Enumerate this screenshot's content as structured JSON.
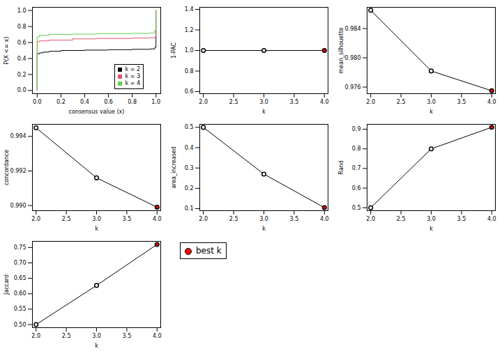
{
  "chart_data": [
    {
      "type": "step",
      "x_label": "consensus value (x)",
      "y_label": "P(X <= x)",
      "xlim": [
        -0.04,
        1.04
      ],
      "xticks": [
        {
          "value": 0,
          "label": "0.0"
        },
        0.2,
        0.4,
        0.6,
        0.8,
        {
          "value": 1,
          "label": "1.0"
        }
      ],
      "ylim": [
        -0.04,
        1.04
      ],
      "yticks": [
        {
          "value": 0,
          "label": "0.0"
        },
        0.2,
        0.4,
        0.6,
        0.8,
        {
          "value": 1,
          "label": "1.0"
        }
      ],
      "legend": "bottom-right",
      "series": [
        {
          "name": "k = 2",
          "color": "#000000",
          "x": [
            0,
            0,
            0.02,
            0.05,
            0.1,
            0.2,
            0.4,
            0.6,
            0.8,
            0.95,
            0.99,
            1.0
          ],
          "values": [
            0,
            0.46,
            0.47,
            0.48,
            0.49,
            0.5,
            0.505,
            0.51,
            0.515,
            0.52,
            0.54,
            1.0
          ]
        },
        {
          "name": "k = 3",
          "color": "#df536b",
          "x": [
            0,
            0,
            0.02,
            0.1,
            0.3,
            0.5,
            0.8,
            0.95,
            0.99,
            1.0
          ],
          "values": [
            0,
            0.61,
            0.62,
            0.63,
            0.645,
            0.65,
            0.655,
            0.66,
            0.67,
            1.0
          ]
        },
        {
          "name": "k = 4",
          "color": "#61d04f",
          "x": [
            0,
            0,
            0.02,
            0.1,
            0.3,
            0.5,
            0.8,
            0.95,
            0.99,
            1.0
          ],
          "values": [
            0,
            0.67,
            0.69,
            0.7,
            0.705,
            0.71,
            0.715,
            0.72,
            0.75,
            1.0
          ]
        }
      ]
    },
    {
      "type": "line",
      "x_label": "k",
      "y_label": "1-PAC",
      "marker": "circle",
      "x": [
        2,
        3,
        4
      ],
      "values": [
        1.0,
        1.0,
        1.0
      ],
      "colors": [
        "#ffffff",
        "#ffffff",
        "#ff0000"
      ],
      "xlim": [
        1.94,
        4.06
      ],
      "xticks": [
        {
          "value": 2,
          "label": "2.0"
        },
        2.5,
        {
          "value": 3,
          "label": "3.0"
        },
        3.5,
        {
          "value": 4,
          "label": "4.0"
        }
      ],
      "ylim": [
        0.58,
        1.42
      ],
      "yticks": [
        0.6,
        0.8,
        {
          "value": 1,
          "label": "1.0"
        },
        1.2,
        1.4
      ]
    },
    {
      "type": "line",
      "x_label": "k",
      "y_label": "mean_silhouette",
      "marker": "circle",
      "x": [
        2,
        3,
        4
      ],
      "values": [
        0.9865,
        0.9782,
        0.9755
      ],
      "colors": [
        "#ffffff",
        "#ffffff",
        "#ff0000"
      ],
      "xlim": [
        1.94,
        4.06
      ],
      "xticks": [
        {
          "value": 2,
          "label": "2.0"
        },
        2.5,
        {
          "value": 3,
          "label": "3.0"
        },
        3.5,
        {
          "value": 4,
          "label": "4.0"
        }
      ],
      "ylim": [
        0.9751,
        0.9869
      ],
      "yticks": [
        0.976,
        {
          "value": 0.98,
          "label": "0.980"
        },
        0.984
      ]
    },
    {
      "type": "line",
      "x_label": "k",
      "y_label": "concordance",
      "marker": "circle",
      "x": [
        2,
        3,
        4
      ],
      "values": [
        0.9945,
        0.9916,
        0.9899
      ],
      "colors": [
        "#ffffff",
        "#ffffff",
        "#ff0000"
      ],
      "xlim": [
        1.94,
        4.06
      ],
      "xticks": [
        {
          "value": 2,
          "label": "2.0"
        },
        2.5,
        {
          "value": 3,
          "label": "3.0"
        },
        3.5,
        {
          "value": 4,
          "label": "4.0"
        }
      ],
      "ylim": [
        0.9897,
        0.9947
      ],
      "yticks": [
        {
          "value": 0.99,
          "label": "0.990"
        },
        0.992,
        0.994
      ]
    },
    {
      "type": "line",
      "x_label": "k",
      "y_label": "area_increased",
      "marker": "circle",
      "x": [
        2,
        3,
        4
      ],
      "values": [
        0.5,
        0.27,
        0.105
      ],
      "colors": [
        "#ffffff",
        "#ffffff",
        "#ff0000"
      ],
      "xlim": [
        1.94,
        4.06
      ],
      "xticks": [
        {
          "value": 2,
          "label": "2.0"
        },
        2.5,
        {
          "value": 3,
          "label": "3.0"
        },
        3.5,
        {
          "value": 4,
          "label": "4.0"
        }
      ],
      "ylim": [
        0.09,
        0.515
      ],
      "yticks": [
        0.1,
        0.2,
        0.3,
        0.4,
        0.5
      ]
    },
    {
      "type": "line",
      "x_label": "k",
      "y_label": "Rand",
      "marker": "circle",
      "x": [
        2,
        3,
        4
      ],
      "values": [
        0.5,
        0.8,
        0.91
      ],
      "colors": [
        "#ffffff",
        "#ffffff",
        "#ff0000"
      ],
      "xlim": [
        1.94,
        4.06
      ],
      "xticks": [
        {
          "value": 2,
          "label": "2.0"
        },
        2.5,
        {
          "value": 3,
          "label": "3.0"
        },
        3.5,
        {
          "value": 4,
          "label": "4.0"
        }
      ],
      "ylim": [
        0.485,
        0.925
      ],
      "yticks": [
        0.5,
        0.6,
        0.7,
        0.8,
        0.9
      ]
    },
    {
      "type": "line",
      "x_label": "k",
      "y_label": "Jaccard",
      "marker": "circle",
      "x": [
        2,
        3,
        4
      ],
      "values": [
        0.5,
        0.627,
        0.76
      ],
      "colors": [
        "#ffffff",
        "#ffffff",
        "#ff0000"
      ],
      "xlim": [
        1.94,
        4.06
      ],
      "xticks": [
        {
          "value": 2,
          "label": "2.0"
        },
        2.5,
        {
          "value": 3,
          "label": "3.0"
        },
        3.5,
        {
          "value": 4,
          "label": "4.0"
        }
      ],
      "ylim": [
        0.49,
        0.77
      ],
      "yticks": [
        {
          "value": 0.5,
          "label": "0.50"
        },
        0.55,
        {
          "value": 0.6,
          "label": "0.60"
        },
        0.65,
        {
          "value": 0.7,
          "label": "0.70"
        },
        0.75
      ]
    }
  ],
  "key": {
    "label": "best k",
    "color": "#ff0000"
  }
}
